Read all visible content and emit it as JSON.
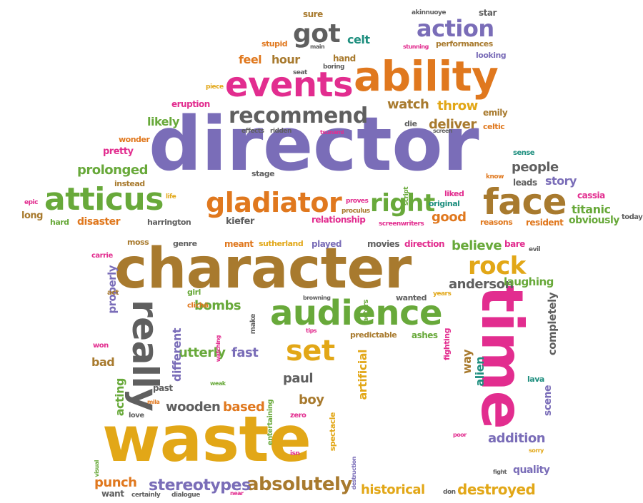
{
  "palette": {
    "purple": "#7a6db8",
    "orange": "#e0781e",
    "magenta": "#e22d8f",
    "green": "#68a93a",
    "gold": "#e2a717",
    "brown": "#a87a2e",
    "teal": "#1f8f7f",
    "gray": "#5f5f5f"
  },
  "words": [
    "director",
    "character",
    "waste",
    "time",
    "ability",
    "events",
    "atticus",
    "face",
    "audience",
    "gladiator",
    "really",
    "recommend",
    "rock",
    "set",
    "action",
    "got",
    "right",
    "absolutely",
    "stereotypes",
    "anderson",
    "destroyed",
    "historical",
    "believe",
    "utterly",
    "fast",
    "bombs",
    "addition",
    "wooden",
    "based",
    "punch",
    "prolonged",
    "people",
    "titanic",
    "story",
    "feel",
    "hour",
    "celt",
    "throw",
    "watch",
    "deliver",
    "good",
    "different",
    "paul",
    "boy",
    "alien",
    "way",
    "acting",
    "artificial",
    "scene",
    "completely",
    "properly",
    "laughing",
    "bad",
    "quality",
    "likely",
    "relationship",
    "disaster",
    "obviously",
    "harrington",
    "kiefer",
    "reasons",
    "resident",
    "meant",
    "sutherland",
    "played",
    "movies",
    "direction",
    "cassia",
    "leads",
    "emily",
    "celtic",
    "pretty",
    "instead",
    "long",
    "hard",
    "epic",
    "life",
    "stage",
    "original",
    "liked",
    "sense",
    "know",
    "script",
    "die",
    "screen",
    "tsunami",
    "effects",
    "ridden",
    "eruption",
    "piece",
    "seat",
    "boring",
    "hand",
    "main",
    "stupid",
    "sure",
    "star",
    "akinnuoye",
    "stunning",
    "performances",
    "looking",
    "wonder",
    "proves",
    "proculus",
    "screenwriters",
    "moss",
    "genre",
    "carrie",
    "act",
    "girl",
    "clichã",
    "make",
    "browning",
    "actors",
    "wanted",
    "years",
    "fighting",
    "bare",
    "evil",
    "today",
    "watching",
    "tips",
    "predictable",
    "ashes",
    "entertaining",
    "spectacle",
    "won",
    "past",
    "weak",
    "mila",
    "love",
    "zero",
    "destruction",
    "isn",
    "poor",
    "sorry",
    "fight",
    "visual",
    "want",
    "certainly",
    "dialogue",
    "near",
    "don",
    "lava"
  ]
}
